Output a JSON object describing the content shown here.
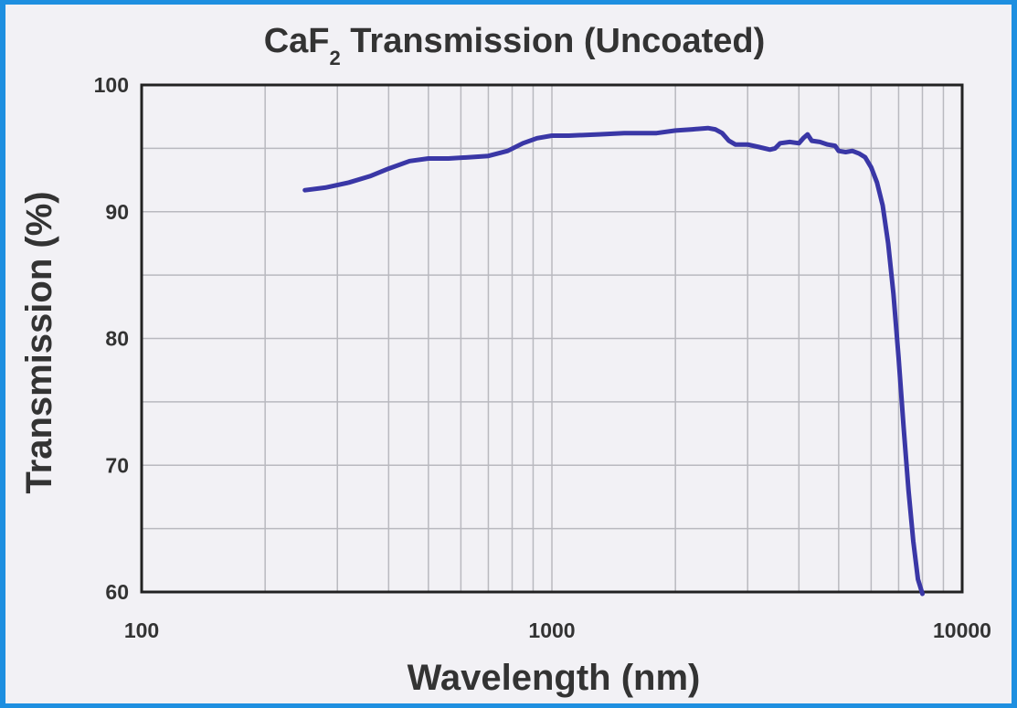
{
  "chart_data": {
    "type": "line",
    "title": {
      "main": "CaF",
      "subscript": "2",
      "rest": " Transmission (Uncoated)"
    },
    "xlabel": "Wavelength (nm)",
    "ylabel": "Transmission (%)",
    "x_scale": "log",
    "xlim": [
      100,
      10000
    ],
    "ylim": [
      60,
      100
    ],
    "x_ticks": [
      100,
      1000,
      10000
    ],
    "x_tick_labels": [
      "100",
      "1000",
      "10000"
    ],
    "y_ticks": [
      60,
      70,
      80,
      90,
      100
    ],
    "y_tick_labels": [
      "60",
      "70",
      "80",
      "90",
      "100"
    ],
    "grid": true,
    "line_color": "#3a37a6",
    "series": [
      {
        "x": [
          250,
          280,
          320,
          360,
          400,
          450,
          500,
          560,
          630,
          700,
          780,
          850,
          920,
          1000,
          1100,
          1300,
          1500,
          1800,
          2000,
          2200,
          2400,
          2500,
          2600,
          2700,
          2800,
          3000,
          3200,
          3400,
          3500,
          3600,
          3800,
          4000,
          4100,
          4200,
          4300,
          4500,
          4700,
          4900,
          5000,
          5200,
          5400,
          5600,
          5800,
          6000,
          6200,
          6400,
          6600,
          6800,
          7000,
          7200,
          7400,
          7600,
          7800,
          8000
        ],
        "y": [
          91.7,
          91.9,
          92.3,
          92.8,
          93.4,
          94.0,
          94.2,
          94.2,
          94.3,
          94.4,
          94.8,
          95.4,
          95.8,
          96.0,
          96.0,
          96.1,
          96.2,
          96.2,
          96.4,
          96.5,
          96.6,
          96.5,
          96.2,
          95.6,
          95.3,
          95.3,
          95.1,
          94.9,
          95.0,
          95.4,
          95.5,
          95.4,
          95.8,
          96.1,
          95.6,
          95.5,
          95.3,
          95.2,
          94.8,
          94.7,
          94.8,
          94.6,
          94.3,
          93.5,
          92.3,
          90.5,
          87.5,
          83.5,
          78.5,
          73.0,
          68.0,
          64.0,
          61.0,
          59.8
        ]
      }
    ]
  }
}
